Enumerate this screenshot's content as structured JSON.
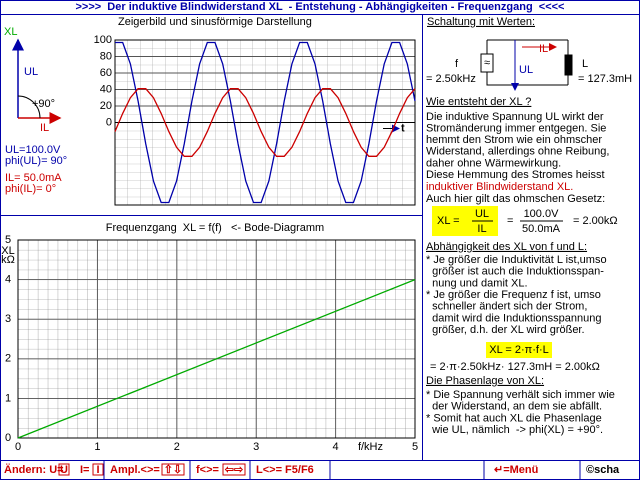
{
  "header": {
    "title": ">>>>  Der induktive Blindwiderstand XL  - Entstehung - Abhängigkeiten - Frequenzgang  <<<<"
  },
  "phasor": {
    "xl": "XL",
    "ul": "UL",
    "angle": "+90°",
    "il": "IL"
  },
  "values": [
    "UL=100.0V",
    "phi(UL)= 90°",
    "IL= 50.0mA",
    "phi(IL)= 0°"
  ],
  "chart_data": [
    {
      "type": "line",
      "title": "Zeigerbild und sinusförmige Darstellung",
      "x_label": "t",
      "x": [
        0,
        30,
        60,
        90,
        120,
        150,
        180,
        210,
        240,
        270,
        300,
        330,
        360,
        390,
        420,
        450,
        480,
        510,
        540,
        570,
        600,
        630,
        660,
        690,
        720,
        750,
        780,
        810,
        840,
        870,
        900,
        930,
        960,
        990,
        1020,
        1050,
        1080,
        1110,
        1140,
        1170
      ],
      "xlim": [
        0,
        1170
      ],
      "ylim": [
        -100,
        100
      ],
      "yticks": [
        0,
        20,
        40,
        60,
        80,
        100
      ],
      "grid": true,
      "series": [
        {
          "color": "#0000aa",
          "values": [
            97,
            97,
            71,
            26,
            -26,
            -71,
            -97,
            -97,
            -71,
            -26,
            26,
            71,
            97,
            97,
            71,
            26,
            -26,
            -71,
            -97,
            -97,
            -71,
            -26,
            26,
            71,
            97,
            97,
            71,
            26,
            -26,
            -71,
            -97,
            -97,
            -71,
            -26,
            26,
            71,
            97,
            97,
            71,
            26
          ]
        },
        {
          "color": "#cc0000",
          "values": [
            -11,
            11,
            30,
            41,
            41,
            30,
            11,
            -11,
            -30,
            -41,
            -41,
            -30,
            -11,
            11,
            30,
            41,
            41,
            30,
            11,
            -11,
            -30,
            -41,
            -41,
            -30,
            -11,
            11,
            30,
            41,
            41,
            30,
            11,
            -11,
            -30,
            -41,
            -41,
            -30,
            -11,
            11,
            30,
            41
          ]
        }
      ]
    },
    {
      "type": "line",
      "title": "Frequenzgang  XL = f(f)   <- Bode-Diagramm",
      "x_label": "f/kHz",
      "y_label": "XL",
      "y_unit": "kΩ",
      "x": [
        0,
        5
      ],
      "xlim": [
        0,
        5
      ],
      "ylim": [
        0,
        5
      ],
      "xticks": [
        0,
        1,
        2,
        3,
        4,
        5
      ],
      "yticks": [
        0,
        1,
        2,
        3,
        4,
        5
      ],
      "grid": true,
      "series": [
        {
          "color": "#00aa00",
          "values": [
            0,
            4.0
          ]
        }
      ]
    }
  ],
  "circuit": {
    "title": "Schaltung mit Werten:",
    "f": "f",
    "f_value": "= 2.50kHz",
    "il": "IL",
    "ul": "UL",
    "l": "L",
    "l_value": "= 127.3mH",
    "source": "≈"
  },
  "section1": {
    "title": "Wie entsteht der XL ?",
    "lines": [
      "Die induktive Spannung UL wirkt der",
      "Stromänderung immer entgegen. Sie",
      "hemmt den Strom wie ein ohmscher",
      "Widerstand, allerdings ohne Reibung,",
      "daher ohne Wärmewirkung.",
      "Diese Hemmung des Stromes heisst"
    ],
    "highlight": "induktiver Blindwiderstand XL.",
    "law": "Auch hier gilt das ohmschen Gesetz:"
  },
  "formula": {
    "lhs": "XL =",
    "num": "UL",
    "den": "IL",
    "eq": "=",
    "num_value": "100.0V",
    "den_value": "50.0mA",
    "result": "= 2.00kΩ"
  },
  "section2": {
    "title": "Abhängigkeit des XL von f und L:",
    "lines": [
      "* Je größer die Induktivität L ist,umso",
      "  größer ist auch die Induktionsspan-",
      "  nung und damit XL.",
      "* Je größer die Frequenz f ist, umso",
      "  schneller ändert sich der Strom,",
      "  damit wird die Induktionsspannung",
      "  größer, d.h. der XL wird größer."
    ],
    "formula": "XL = 2·π·f·L",
    "calc": "= 2·π·2.50kHz· 127.3mH = 2.00kΩ"
  },
  "section3": {
    "title": "Die Phasenlage von XL:",
    "lines": [
      "* Die Spannung verhält sich immer wie",
      "  der Widerstand, an dem sie abfällt.",
      "* Somit hat auch XL die Phasenlage",
      "  wie UL, nämlich  -> phi(XL) = +90°."
    ]
  },
  "footer": [
    "Ändern: U=",
    "U",
    "I=",
    "I",
    "Ampl.<>=",
    "⇧⇩",
    "f<>=",
    "⇦⇨",
    "L<>= F5/F6",
    "↵=Menü",
    "©scha"
  ]
}
